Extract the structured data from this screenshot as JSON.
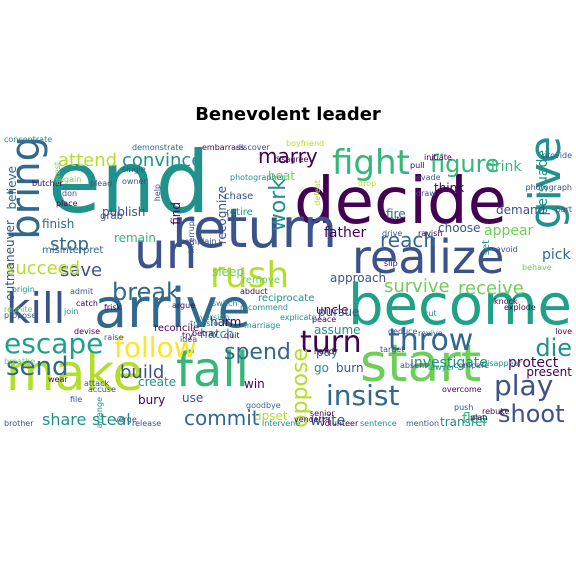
{
  "title": "Benevolent leader",
  "palette": {
    "deep_purple": "#440154",
    "indigo": "#3b528b",
    "blue": "#31688e",
    "teal": "#21918c",
    "sea_green": "#1fa187",
    "green": "#35b779",
    "lime": "#6ece58",
    "yellow_green": "#b5de2b",
    "yellow": "#fde725"
  },
  "words": [
    {
      "text": "end",
      "color": "#21918c"
    },
    {
      "text": "decide",
      "color": "#440154"
    },
    {
      "text": "return",
      "color": "#3b528b"
    },
    {
      "text": "become",
      "color": "#1fa187"
    },
    {
      "text": "arrive",
      "color": "#31688e"
    },
    {
      "text": "realize",
      "color": "#3b528b"
    },
    {
      "text": "start",
      "color": "#6ece58"
    },
    {
      "text": "fall",
      "color": "#35b779"
    },
    {
      "text": "make",
      "color": "#b5de2b"
    },
    {
      "text": "give",
      "color": "#21918c"
    },
    {
      "text": "bring",
      "color": "#31688e"
    },
    {
      "text": "kill",
      "color": "#3b528b"
    },
    {
      "text": "fight",
      "color": "#35b779"
    },
    {
      "text": "rush",
      "color": "#b5de2b"
    },
    {
      "text": "turn",
      "color": "#440154"
    },
    {
      "text": "throw",
      "color": "#31688e"
    },
    {
      "text": "un",
      "color": "#3b528b"
    },
    {
      "text": "escape",
      "color": "#1fa187"
    },
    {
      "text": "follow",
      "color": "#fde725"
    },
    {
      "text": "break",
      "color": "#31688e"
    },
    {
      "text": "play",
      "color": "#3b528b"
    },
    {
      "text": "insist",
      "color": "#31688e"
    },
    {
      "text": "send",
      "color": "#31688e"
    },
    {
      "text": "die",
      "color": "#21918c"
    },
    {
      "text": "shoot",
      "color": "#3b528b"
    },
    {
      "text": "figure",
      "color": "#35b779"
    },
    {
      "text": "marry",
      "color": "#440154"
    },
    {
      "text": "convince",
      "color": "#21918c"
    },
    {
      "text": "attend",
      "color": "#b5de2b"
    },
    {
      "text": "work",
      "color": "#21918c"
    },
    {
      "text": "spend",
      "color": "#31688e"
    },
    {
      "text": "commit",
      "color": "#31688e"
    },
    {
      "text": "oppose",
      "color": "#b5de2b"
    },
    {
      "text": "reach",
      "color": "#31688e"
    },
    {
      "text": "survive",
      "color": "#6ece58"
    },
    {
      "text": "receive",
      "color": "#6ece58"
    },
    {
      "text": "save",
      "color": "#3b528b"
    },
    {
      "text": "succeed",
      "color": "#b5de2b"
    },
    {
      "text": "stop",
      "color": "#31688e"
    },
    {
      "text": "build",
      "color": "#3b528b"
    },
    {
      "text": "investigate",
      "color": "#21918c"
    },
    {
      "text": "protect",
      "color": "#440154"
    },
    {
      "text": "share",
      "color": "#21918c"
    },
    {
      "text": "steal",
      "color": "#21918c"
    },
    {
      "text": "flee",
      "color": "#35b779"
    },
    {
      "text": "write",
      "color": "#31688e"
    },
    {
      "text": "transfer",
      "color": "#21918c"
    },
    {
      "text": "father",
      "color": "#440154"
    },
    {
      "text": "choose",
      "color": "#3b528b"
    },
    {
      "text": "drink",
      "color": "#35b779"
    },
    {
      "text": "appear",
      "color": "#6ece58"
    },
    {
      "text": "pick",
      "color": "#31688e"
    },
    {
      "text": "persuade",
      "color": "#21918c"
    },
    {
      "text": "believe",
      "color": "#31688e"
    },
    {
      "text": "outmaneuver",
      "color": "#3b528b"
    },
    {
      "text": "finish",
      "color": "#31688e"
    },
    {
      "text": "publish",
      "color": "#3b528b"
    },
    {
      "text": "remain",
      "color": "#35b779"
    },
    {
      "text": "recognize",
      "color": "#3b528b"
    },
    {
      "text": "find",
      "color": "#440154"
    },
    {
      "text": "sleep",
      "color": "#6ece58"
    },
    {
      "text": "beat",
      "color": "#6ece58"
    },
    {
      "text": "fire",
      "color": "#31688e"
    },
    {
      "text": "think",
      "color": "#440154"
    },
    {
      "text": "demand",
      "color": "#3b528b"
    },
    {
      "text": "uncle",
      "color": "#440154"
    },
    {
      "text": "pursue",
      "color": "#3b528b"
    },
    {
      "text": "pay",
      "color": "#31688e"
    },
    {
      "text": "go",
      "color": "#21918c"
    },
    {
      "text": "assume",
      "color": "#21918c"
    },
    {
      "text": "create",
      "color": "#21918c"
    },
    {
      "text": "bury",
      "color": "#440154"
    },
    {
      "text": "use",
      "color": "#3b528b"
    },
    {
      "text": "upset",
      "color": "#b5de2b"
    },
    {
      "text": "present",
      "color": "#440154"
    },
    {
      "text": "approach",
      "color": "#3b528b"
    },
    {
      "text": "harm",
      "color": "#440154"
    },
    {
      "text": "hatch",
      "color": "#21918c"
    },
    {
      "text": "win",
      "color": "#440154"
    },
    {
      "text": "burn",
      "color": "#3b528b"
    },
    {
      "text": "grab",
      "color": "#3b528b"
    },
    {
      "text": "misinterpret",
      "color": "#31688e"
    },
    {
      "text": "chase",
      "color": "#3b528b"
    },
    {
      "text": "retire",
      "color": "#21918c"
    },
    {
      "text": "set",
      "color": "#21918c"
    },
    {
      "text": "reconcile",
      "color": "#440154"
    },
    {
      "text": "remove",
      "color": "#6ece58"
    },
    {
      "text": "reciprocate",
      "color": "#21918c"
    },
    {
      "text": "disagree",
      "color": "#440154"
    },
    {
      "text": "embarrass",
      "color": "#440154"
    },
    {
      "text": "demonstrate",
      "color": "#31688e"
    },
    {
      "text": "interrupt",
      "color": "#3b528b"
    },
    {
      "text": "complain",
      "color": "#3b528b"
    },
    {
      "text": "peace",
      "color": "#440154"
    },
    {
      "text": "hand",
      "color": "#440154"
    },
    {
      "text": "brother",
      "color": "#3b528b"
    },
    {
      "text": "release",
      "color": "#3b528b"
    },
    {
      "text": "intervene",
      "color": "#21918c"
    },
    {
      "text": "sentence",
      "color": "#21918c"
    },
    {
      "text": "mention",
      "color": "#3b528b"
    },
    {
      "text": "vendetta",
      "color": "#440154"
    },
    {
      "text": "goodbye",
      "color": "#31688e"
    },
    {
      "text": "devise",
      "color": "#440154"
    },
    {
      "text": "wear",
      "color": "#440154"
    },
    {
      "text": "attack",
      "color": "#3b528b"
    },
    {
      "text": "accuse",
      "color": "#3b528b"
    },
    {
      "text": "reunite",
      "color": "#6ece58"
    },
    {
      "text": "propose",
      "color": "#31688e"
    },
    {
      "text": "transform",
      "color": "#21918c"
    },
    {
      "text": "idea",
      "color": "#3b528b"
    },
    {
      "text": "deduce",
      "color": "#3b528b"
    },
    {
      "text": "revive",
      "color": "#3b528b"
    },
    {
      "text": "overcome",
      "color": "#440154"
    },
    {
      "text": "push",
      "color": "#3b528b"
    },
    {
      "text": "rebuke",
      "color": "#440154"
    },
    {
      "text": "plan",
      "color": "#440154"
    },
    {
      "text": "compare",
      "color": "#3b528b"
    },
    {
      "text": "absent",
      "color": "#3b528b"
    },
    {
      "text": "explode",
      "color": "#440154"
    },
    {
      "text": "avoid",
      "color": "#3b528b"
    },
    {
      "text": "behave",
      "color": "#6ece58"
    },
    {
      "text": "love",
      "color": "#440154"
    },
    {
      "text": "part",
      "color": "#3b528b"
    },
    {
      "text": "unite",
      "color": "#440154"
    },
    {
      "text": "slip",
      "color": "#440154"
    },
    {
      "text": "ravish",
      "color": "#440154"
    },
    {
      "text": "draw",
      "color": "#3b528b"
    },
    {
      "text": "evade",
      "color": "#3b528b"
    },
    {
      "text": "pull",
      "color": "#440154"
    },
    {
      "text": "initiate",
      "color": "#440154"
    },
    {
      "text": "drive",
      "color": "#3b528b"
    },
    {
      "text": "drop",
      "color": "#b5de2b"
    },
    {
      "text": "defeat",
      "color": "#b5de2b"
    },
    {
      "text": "photographer",
      "color": "#21918c"
    },
    {
      "text": "plead",
      "color": "#3b528b"
    },
    {
      "text": "don",
      "color": "#3b528b"
    },
    {
      "text": "place",
      "color": "#440154"
    },
    {
      "text": "single",
      "color": "#3b528b"
    },
    {
      "text": "owner",
      "color": "#3b528b"
    },
    {
      "text": "help",
      "color": "#3b528b"
    },
    {
      "text": "argue",
      "color": "#440154"
    },
    {
      "text": "try",
      "color": "#440154"
    },
    {
      "text": "quit",
      "color": "#440154"
    },
    {
      "text": "switch",
      "color": "#21918c"
    },
    {
      "text": "recommend",
      "color": "#21918c"
    },
    {
      "text": "explicate",
      "color": "#21918c"
    },
    {
      "text": "senior",
      "color": "#440154"
    },
    {
      "text": "volunteer",
      "color": "#440154"
    },
    {
      "text": "cut",
      "color": "#21918c"
    },
    {
      "text": "target",
      "color": "#3b528b"
    },
    {
      "text": "disappear",
      "color": "#21918c"
    },
    {
      "text": "knock",
      "color": "#440154"
    },
    {
      "text": "verge",
      "color": "#3b528b"
    },
    {
      "text": "file",
      "color": "#3b528b"
    },
    {
      "text": "frisk",
      "color": "#440154"
    },
    {
      "text": "catch",
      "color": "#440154"
    },
    {
      "text": "join",
      "color": "#21918c"
    },
    {
      "text": "raise",
      "color": "#3b528b"
    },
    {
      "text": "admit",
      "color": "#3b528b"
    },
    {
      "text": "origin",
      "color": "#21918c"
    },
    {
      "text": "version",
      "color": "#21918c"
    },
    {
      "text": "betray",
      "color": "#440154"
    },
    {
      "text": "lawyer",
      "color": "#21918c"
    },
    {
      "text": "regain",
      "color": "#6ece58"
    },
    {
      "text": "discover",
      "color": "#3b528b"
    },
    {
      "text": "abduct",
      "color": "#440154"
    },
    {
      "text": "breathe",
      "color": "#6ece58"
    },
    {
      "text": "boyfriend",
      "color": "#b5de2b"
    },
    {
      "text": "butcher",
      "color": "#440154"
    },
    {
      "text": "arrest",
      "color": "#6ece58"
    },
    {
      "text": "photograph",
      "color": "#3b528b"
    },
    {
      "text": "arrange",
      "color": "#21918c"
    },
    {
      "text": "provide",
      "color": "#3b528b"
    },
    {
      "text": "marriage",
      "color": "#21918c"
    },
    {
      "text": "concentrate",
      "color": "#21918c"
    }
  ]
}
